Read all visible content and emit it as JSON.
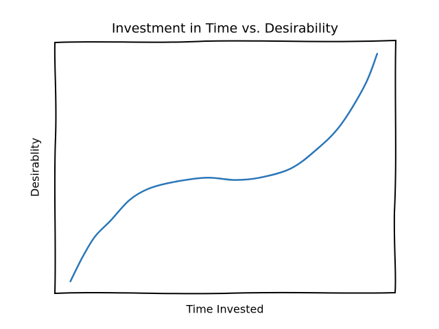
{
  "chart_data": {
    "type": "line",
    "title": "Investment in Time vs. Desirability",
    "x_label": "Time Invested",
    "y_label": "Desirablity",
    "x": [
      0,
      0.4,
      0.8,
      1.3,
      1.9,
      2.5,
      3.3,
      4.4,
      5.3,
      6.1,
      7.1,
      7.9,
      8.7,
      9.5,
      9.9
    ],
    "values": [
      0,
      1.1,
      2.0,
      2.7,
      3.6,
      4.1,
      4.4,
      4.6,
      4.5,
      4.6,
      5.0,
      5.8,
      6.9,
      8.7,
      10.1
    ],
    "color": "#2a76b8",
    "xlim": [
      -0.5,
      10.5
    ],
    "ylim": [
      -0.5,
      10.6
    ]
  }
}
